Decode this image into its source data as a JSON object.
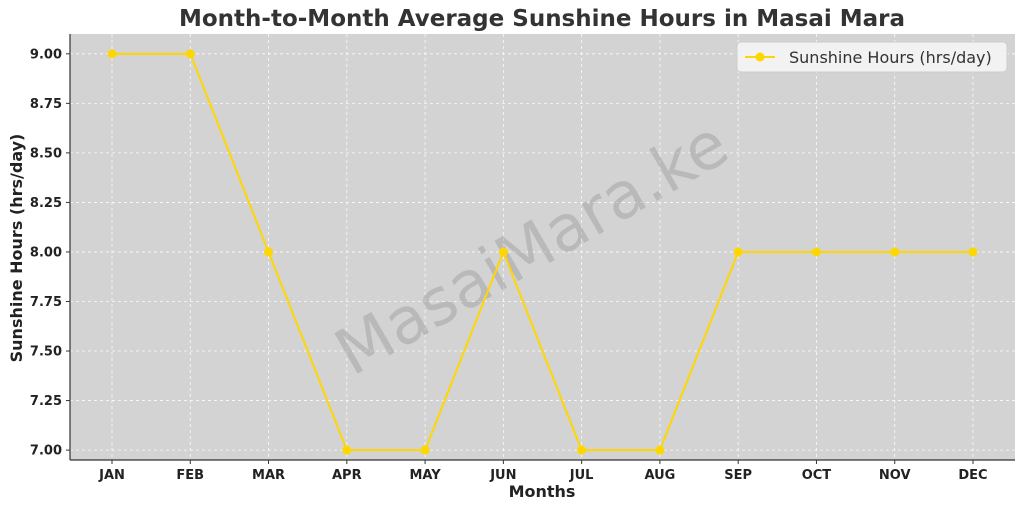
{
  "chart_data": {
    "type": "line",
    "title": "Month-to-Month Average Sunshine Hours in Masai Mara",
    "xlabel": "Months",
    "ylabel": "Sunshine Hours (hrs/day)",
    "categories": [
      "JAN",
      "FEB",
      "MAR",
      "APR",
      "MAY",
      "JUN",
      "JUL",
      "AUG",
      "SEP",
      "OCT",
      "NOV",
      "DEC"
    ],
    "series": [
      {
        "name": "Sunshine Hours (hrs/day)",
        "values": [
          9,
          9,
          8,
          7,
          7,
          8,
          7,
          7,
          8,
          8,
          8,
          8
        ],
        "color": "#FFD700"
      }
    ],
    "yticks": [
      "7.00",
      "7.25",
      "7.50",
      "7.75",
      "8.00",
      "8.25",
      "8.50",
      "8.75",
      "9.00"
    ],
    "ylim": [
      6.95,
      9.1
    ],
    "grid": true,
    "legend_position": "top-right",
    "plot_background": "#D3D3D3",
    "watermark": "MasaiMara.ke"
  }
}
